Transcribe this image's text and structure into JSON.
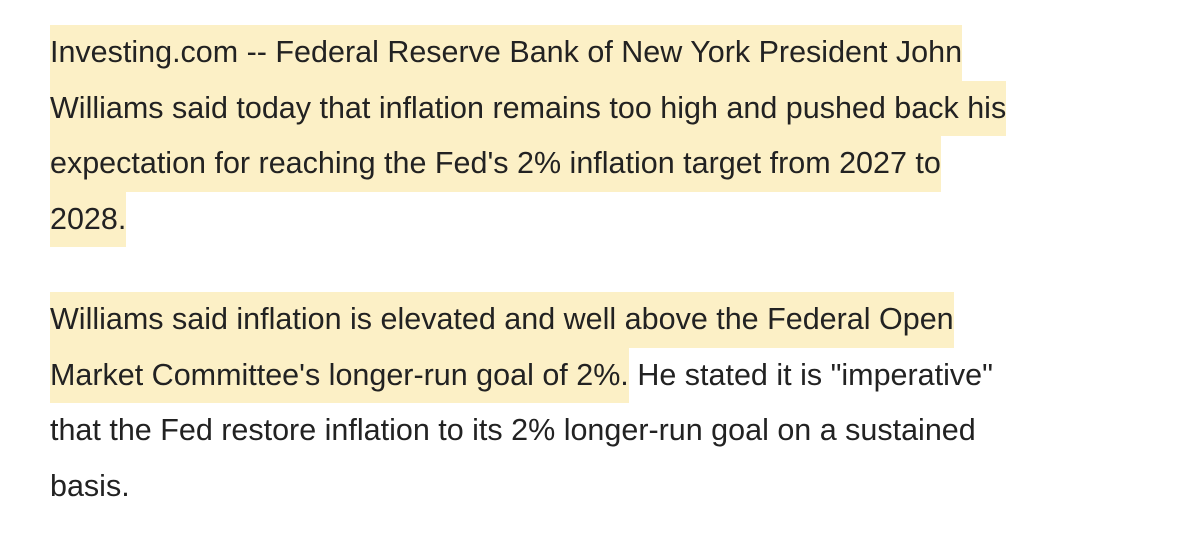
{
  "paragraphs": [
    {
      "lines": [
        {
          "highlighted": "Investing.com -- Federal Reserve Bank of New York President John"
        },
        {
          "highlighted": "Williams said today that inflation remains too high and pushed back his"
        },
        {
          "highlighted": "expectation for reaching the Fed's 2% inflation target from 2027 to"
        },
        {
          "highlighted": "2028."
        }
      ]
    },
    {
      "lines": [
        {
          "highlighted": "Williams said inflation is elevated and well above the Federal Open"
        },
        {
          "highlighted": "Market Committee's longer-run goal of 2%.",
          "plain": "He stated it is \"imperative\""
        },
        {
          "plain": "that the Fed restore inflation to its 2% longer-run goal on a sustained"
        },
        {
          "plain": "basis."
        }
      ]
    }
  ]
}
